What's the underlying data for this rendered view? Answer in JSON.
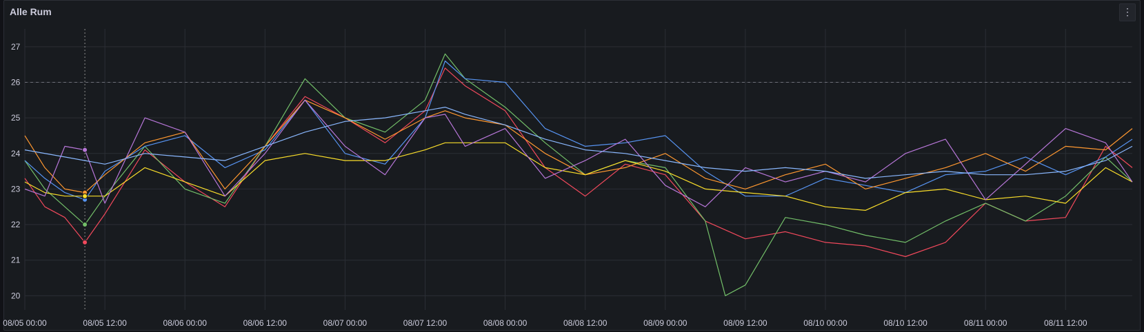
{
  "panel": {
    "title": "Alle Rum",
    "menu_icon": "vertical-ellipsis-icon"
  },
  "chart_data": {
    "type": "line",
    "title": "Alle Rum",
    "xlabel": "",
    "ylabel": "",
    "x_ticks": [
      "08/05 00:00",
      "08/05 12:00",
      "08/06 00:00",
      "08/06 12:00",
      "08/07 00:00",
      "08/07 12:00",
      "08/08 00:00",
      "08/08 12:00",
      "08/09 00:00",
      "08/09 12:00",
      "08/10 00:00",
      "08/10 12:00",
      "08/11 00:00",
      "08/11 12:00"
    ],
    "y_ticks": [
      20,
      21,
      22,
      23,
      24,
      25,
      26,
      27
    ],
    "xlim": [
      "08/05 00:00",
      "08/11 22:00"
    ],
    "ylim": [
      19.6,
      27.5
    ],
    "threshold": 26,
    "grid": true,
    "legend": "none",
    "hover_x": "08/05 09:00",
    "series": [
      {
        "color": "#f2495c",
        "x": [
          "08/05 00:00",
          "08/05 03:00",
          "08/05 06:00",
          "08/05 09:00",
          "08/05 12:00",
          "08/05 18:00",
          "08/06 00:00",
          "08/06 06:00",
          "08/06 12:00",
          "08/06 18:00",
          "08/07 00:00",
          "08/07 06:00",
          "08/07 12:00",
          "08/07 15:00",
          "08/07 18:00",
          "08/08 00:00",
          "08/08 06:00",
          "08/08 12:00",
          "08/08 18:00",
          "08/09 00:00",
          "08/09 06:00",
          "08/09 12:00",
          "08/09 18:00",
          "08/10 00:00",
          "08/10 06:00",
          "08/10 12:00",
          "08/10 18:00",
          "08/11 00:00",
          "08/11 06:00",
          "08/11 12:00",
          "08/11 18:00",
          "08/11 22:00"
        ],
        "values": [
          23.3,
          22.5,
          22.2,
          21.5,
          22.3,
          24.1,
          23.2,
          22.5,
          24.2,
          25.6,
          25.0,
          24.3,
          25.2,
          26.4,
          25.9,
          25.2,
          23.6,
          22.8,
          23.7,
          23.4,
          22.1,
          21.6,
          21.8,
          21.5,
          21.4,
          21.1,
          21.5,
          22.6,
          22.1,
          22.2,
          24.2,
          23.6
        ]
      },
      {
        "color": "#73bf69",
        "x": [
          "08/05 00:00",
          "08/05 03:00",
          "08/05 06:00",
          "08/05 09:00",
          "08/05 12:00",
          "08/05 18:00",
          "08/06 00:00",
          "08/06 06:00",
          "08/06 12:00",
          "08/06 18:00",
          "08/07 00:00",
          "08/07 06:00",
          "08/07 12:00",
          "08/07 15:00",
          "08/07 18:00",
          "08/08 00:00",
          "08/08 06:00",
          "08/08 12:00",
          "08/08 18:00",
          "08/09 00:00",
          "08/09 06:00",
          "08/09 09:00",
          "08/09 12:00",
          "08/09 18:00",
          "08/10 00:00",
          "08/10 06:00",
          "08/10 12:00",
          "08/10 18:00",
          "08/11 00:00",
          "08/11 06:00",
          "08/11 12:00",
          "08/11 18:00",
          "08/11 22:00"
        ],
        "values": [
          23.8,
          23.0,
          22.5,
          22.0,
          22.8,
          24.2,
          23.0,
          22.6,
          24.2,
          26.1,
          25.0,
          24.6,
          25.5,
          26.8,
          26.1,
          25.3,
          24.3,
          23.4,
          23.8,
          23.6,
          22.1,
          20.0,
          20.3,
          22.2,
          22.0,
          21.7,
          21.5,
          22.1,
          22.6,
          22.1,
          22.8,
          23.9,
          23.2
        ]
      },
      {
        "color": "#5794f2",
        "x": [
          "08/05 00:00",
          "08/05 03:00",
          "08/05 06:00",
          "08/05 09:00",
          "08/05 12:00",
          "08/05 18:00",
          "08/06 00:00",
          "08/06 06:00",
          "08/06 12:00",
          "08/06 18:00",
          "08/07 00:00",
          "08/07 06:00",
          "08/07 12:00",
          "08/07 15:00",
          "08/07 18:00",
          "08/08 00:00",
          "08/08 06:00",
          "08/08 12:00",
          "08/08 18:00",
          "08/09 00:00",
          "08/09 06:00",
          "08/09 12:00",
          "08/09 18:00",
          "08/10 00:00",
          "08/10 06:00",
          "08/10 12:00",
          "08/10 18:00",
          "08/11 00:00",
          "08/11 06:00",
          "08/11 12:00",
          "08/11 18:00",
          "08/11 22:00"
        ],
        "values": [
          23.8,
          23.3,
          22.9,
          22.7,
          23.5,
          24.2,
          24.5,
          23.6,
          24.1,
          25.5,
          24.0,
          23.7,
          25.0,
          26.6,
          26.1,
          26.0,
          24.7,
          24.2,
          24.3,
          24.5,
          23.5,
          22.8,
          22.8,
          23.3,
          23.1,
          22.9,
          23.4,
          23.5,
          23.9,
          23.4,
          23.9,
          24.4
        ]
      },
      {
        "color": "#ff9830",
        "x": [
          "08/05 00:00",
          "08/05 03:00",
          "08/05 06:00",
          "08/05 09:00",
          "08/05 12:00",
          "08/05 18:00",
          "08/06 00:00",
          "08/06 06:00",
          "08/06 12:00",
          "08/06 18:00",
          "08/07 00:00",
          "08/07 06:00",
          "08/07 12:00",
          "08/07 15:00",
          "08/07 18:00",
          "08/08 00:00",
          "08/08 06:00",
          "08/08 12:00",
          "08/08 18:00",
          "08/09 00:00",
          "08/09 06:00",
          "08/09 12:00",
          "08/09 18:00",
          "08/10 00:00",
          "08/10 06:00",
          "08/10 12:00",
          "08/10 18:00",
          "08/11 00:00",
          "08/11 06:00",
          "08/11 12:00",
          "08/11 18:00",
          "08/11 22:00"
        ],
        "values": [
          24.5,
          23.6,
          23.0,
          22.9,
          23.4,
          24.3,
          24.6,
          23.0,
          24.2,
          25.5,
          25.0,
          24.4,
          25.0,
          25.2,
          25.0,
          24.8,
          24.0,
          23.4,
          23.6,
          24.0,
          23.3,
          23.0,
          23.4,
          23.7,
          23.0,
          23.3,
          23.6,
          24.0,
          23.5,
          24.2,
          24.1,
          24.7
        ]
      },
      {
        "color": "#fade2a",
        "x": [
          "08/05 00:00",
          "08/05 03:00",
          "08/05 06:00",
          "08/05 09:00",
          "08/05 12:00",
          "08/05 18:00",
          "08/06 00:00",
          "08/06 06:00",
          "08/06 12:00",
          "08/06 18:00",
          "08/07 00:00",
          "08/07 06:00",
          "08/07 12:00",
          "08/07 15:00",
          "08/07 18:00",
          "08/08 00:00",
          "08/08 06:00",
          "08/08 12:00",
          "08/08 18:00",
          "08/09 00:00",
          "08/09 06:00",
          "08/09 12:00",
          "08/09 18:00",
          "08/10 00:00",
          "08/10 06:00",
          "08/10 12:00",
          "08/10 18:00",
          "08/11 00:00",
          "08/11 06:00",
          "08/11 12:00",
          "08/11 18:00",
          "08/11 22:00"
        ],
        "values": [
          23.2,
          22.9,
          22.8,
          22.8,
          22.8,
          23.6,
          23.2,
          22.8,
          23.8,
          24.0,
          23.8,
          23.8,
          24.1,
          24.3,
          24.3,
          24.3,
          23.6,
          23.4,
          23.8,
          23.5,
          23.0,
          22.9,
          22.8,
          22.5,
          22.4,
          22.9,
          23.0,
          22.7,
          22.8,
          22.6,
          23.6,
          23.2
        ]
      },
      {
        "color": "#b877d9",
        "x": [
          "08/05 00:00",
          "08/05 03:00",
          "08/05 06:00",
          "08/05 09:00",
          "08/05 12:00",
          "08/05 18:00",
          "08/06 00:00",
          "08/06 06:00",
          "08/06 12:00",
          "08/06 18:00",
          "08/07 00:00",
          "08/07 06:00",
          "08/07 12:00",
          "08/07 15:00",
          "08/07 18:00",
          "08/08 00:00",
          "08/08 06:00",
          "08/08 12:00",
          "08/08 18:00",
          "08/09 00:00",
          "08/09 06:00",
          "08/09 12:00",
          "08/09 18:00",
          "08/10 00:00",
          "08/10 06:00",
          "08/10 12:00",
          "08/10 18:00",
          "08/11 00:00",
          "08/11 06:00",
          "08/11 12:00",
          "08/11 18:00",
          "08/11 22:00"
        ],
        "values": [
          23.0,
          22.8,
          24.2,
          24.1,
          22.6,
          25.0,
          24.6,
          22.8,
          24.0,
          25.5,
          24.2,
          23.4,
          25.0,
          25.1,
          24.2,
          24.7,
          23.3,
          23.8,
          24.4,
          23.1,
          22.5,
          23.6,
          23.2,
          23.5,
          23.2,
          24.0,
          24.4,
          22.7,
          23.7,
          24.7,
          24.3,
          23.2
        ]
      },
      {
        "color": "#8ab8ff",
        "x": [
          "08/05 00:00",
          "08/05 06:00",
          "08/05 12:00",
          "08/05 18:00",
          "08/06 00:00",
          "08/06 06:00",
          "08/06 12:00",
          "08/06 18:00",
          "08/07 00:00",
          "08/07 06:00",
          "08/07 12:00",
          "08/07 15:00",
          "08/07 18:00",
          "08/08 00:00",
          "08/08 06:00",
          "08/08 12:00",
          "08/08 18:00",
          "08/09 00:00",
          "08/09 06:00",
          "08/09 12:00",
          "08/09 18:00",
          "08/10 00:00",
          "08/10 06:00",
          "08/10 12:00",
          "08/10 18:00",
          "08/11 00:00",
          "08/11 06:00",
          "08/11 12:00",
          "08/11 18:00",
          "08/11 22:00"
        ],
        "values": [
          24.1,
          23.9,
          23.7,
          24.0,
          23.9,
          23.8,
          24.2,
          24.6,
          24.9,
          25.0,
          25.2,
          25.3,
          25.1,
          24.8,
          24.4,
          24.1,
          24.0,
          23.8,
          23.6,
          23.5,
          23.6,
          23.5,
          23.3,
          23.4,
          23.5,
          23.4,
          23.4,
          23.5,
          23.8,
          24.2
        ]
      }
    ]
  }
}
